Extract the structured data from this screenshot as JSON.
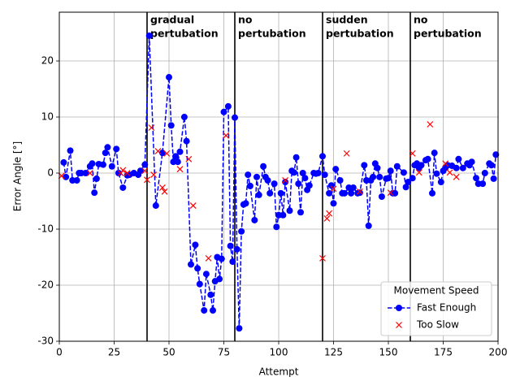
{
  "chart_data": {
    "type": "line",
    "xlabel": "Attempt",
    "ylabel": "Error Angle [°]",
    "xlim": [
      0,
      200
    ],
    "ylim": [
      -30,
      28.7
    ],
    "xticks": [
      0,
      25,
      50,
      75,
      100,
      125,
      150,
      175,
      200
    ],
    "yticks": [
      -30,
      -20,
      -10,
      0,
      10,
      20
    ],
    "grid": true,
    "legend_title": "Movement Speed",
    "legend_position": "lower right",
    "phases": [
      {
        "x": 40,
        "label": [
          "gradual",
          "pertubation"
        ]
      },
      {
        "x": 80,
        "label": [
          "no",
          "pertubation"
        ]
      },
      {
        "x": 120,
        "label": [
          "sudden",
          "pertubation"
        ]
      },
      {
        "x": 160,
        "label": [
          "no",
          "pertubation"
        ]
      }
    ],
    "series": [
      {
        "name": "Fast Enough",
        "color": "#0000ff",
        "linestyle": "dashed",
        "marker": "circle",
        "x": [
          2,
          3,
          5,
          6,
          8,
          9,
          10,
          12,
          14,
          15,
          16,
          17,
          18,
          20,
          21,
          22,
          24,
          26,
          27,
          29,
          31,
          32,
          34,
          36,
          37,
          39,
          41,
          44,
          47,
          50,
          51,
          52,
          53,
          54,
          55,
          57,
          58,
          60,
          62,
          63,
          64,
          66,
          67,
          69,
          70,
          71,
          72,
          73,
          74,
          75,
          77,
          78,
          79,
          80,
          81,
          82,
          83,
          84,
          85,
          86,
          87,
          89,
          90,
          91,
          93,
          94,
          95,
          96,
          98,
          99,
          100,
          101,
          102,
          103,
          105,
          106,
          107,
          108,
          109,
          110,
          111,
          112,
          113,
          114,
          116,
          117,
          118,
          120,
          121,
          123,
          124,
          125,
          126,
          128,
          129,
          130,
          132,
          133,
          134,
          136,
          137,
          139,
          140,
          141,
          142,
          143,
          144,
          145,
          146,
          147,
          149,
          150,
          151,
          152,
          153,
          154,
          157,
          158,
          159,
          161,
          162,
          163,
          164,
          165,
          167,
          168,
          170,
          171,
          172,
          174,
          175,
          176,
          177,
          179,
          181,
          182,
          184,
          186,
          187,
          188,
          190,
          191,
          193,
          194,
          196,
          197,
          198,
          199
        ],
        "values": [
          1.9,
          -0.7,
          4,
          -1.3,
          -1.3,
          0,
          0,
          0,
          1.2,
          1.7,
          -3.5,
          -1,
          1.6,
          1.5,
          3.6,
          4.6,
          1.2,
          4.3,
          0,
          -2.6,
          -0.4,
          -0.3,
          0,
          -0.3,
          0.4,
          1.5,
          24.5,
          -5.8,
          3.6,
          17.1,
          8.5,
          2,
          3,
          2,
          3.8,
          10,
          5.7,
          -16.3,
          -12.8,
          -17,
          -19.8,
          -24.5,
          -18,
          -21.7,
          -24.5,
          -19.3,
          -15,
          -18.9,
          -15.3,
          10.9,
          11.9,
          -13,
          -15.8,
          9.9,
          -13.6,
          -27.7,
          -10.4,
          -5.6,
          -5.4,
          -0.3,
          -2.3,
          -8.4,
          -0.7,
          -3.9,
          1.2,
          -0.7,
          -1.3,
          -3.6,
          -1.9,
          -9.6,
          -7.5,
          -3.6,
          -7.5,
          -1.6,
          -6.7,
          0.4,
          0.1,
          2.8,
          -1.9,
          -7,
          0,
          -0.9,
          -3,
          -2.2,
          0,
          -0.1,
          0,
          3,
          -0.3,
          -3.6,
          -2.2,
          -5.4,
          0.7,
          -1.3,
          -3.6,
          -3.6,
          -2.6,
          -3.6,
          -2.6,
          -3.6,
          -3.5,
          1.4,
          -1.3,
          -9.4,
          -1.3,
          -0.7,
          1.7,
          0.9,
          -0.7,
          -4.2,
          -1,
          -0.9,
          0.4,
          -3.6,
          -3.6,
          1.2,
          0.1,
          -2.5,
          -1.6,
          -0.9,
          1.4,
          1.7,
          0.9,
          1.4,
          2.3,
          2.5,
          -3.6,
          3.6,
          -0.1,
          -1.6,
          0.4,
          0.9,
          1.4,
          1.3,
          0.9,
          2.5,
          0.9,
          1.7,
          1.4,
          2,
          -0.9,
          -1.9,
          -1.9,
          0,
          1.7,
          1.4,
          -1,
          3.3
        ]
      },
      {
        "name": "Too Slow",
        "color": "#ff0000",
        "linestyle": "none",
        "marker": "x",
        "x": [
          1,
          14,
          28,
          29,
          31,
          39,
          40,
          42,
          43,
          45,
          47,
          48,
          49,
          55,
          59,
          61,
          68,
          76,
          103,
          120,
          122,
          123,
          125,
          131,
          137,
          151,
          161,
          164,
          169,
          176,
          178,
          181
        ],
        "values": [
          -0.5,
          0,
          0,
          0.5,
          0,
          0.4,
          -1.2,
          8.1,
          -0.3,
          3.9,
          -2.6,
          -3.3,
          3.5,
          0.7,
          2.5,
          -5.8,
          -15.2,
          6.7,
          -1.3,
          -15.2,
          -8.1,
          -7.2,
          -2.8,
          3.5,
          -3.3,
          -3.5,
          3.5,
          0.1,
          8.7,
          1.7,
          0.1,
          -0.7
        ]
      }
    ]
  }
}
